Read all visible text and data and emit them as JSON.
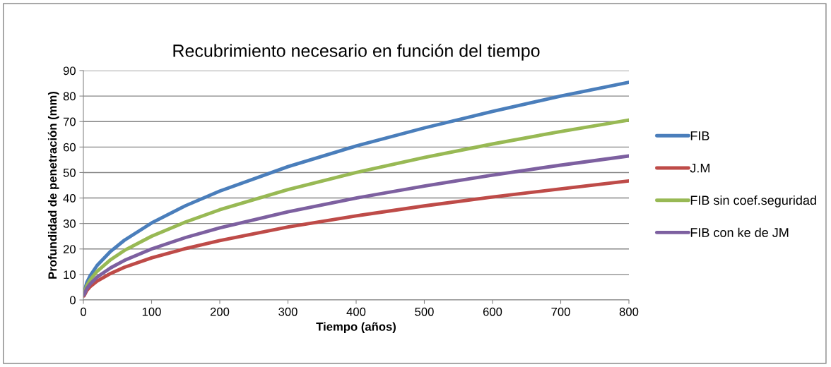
{
  "chart_data": {
    "type": "line",
    "title": "Recubrimiento necesario en función del tiempo",
    "xlabel": "Tiempo (años)",
    "ylabel": "Profundidad de penetración (mm)",
    "x": [
      1,
      5,
      10,
      20,
      40,
      60,
      100,
      150,
      200,
      300,
      400,
      500,
      600,
      700,
      800
    ],
    "series": [
      {
        "name": "FIB",
        "color": "#4a7ebb",
        "values": [
          3.0,
          6.8,
          9.5,
          13.5,
          19.1,
          23.4,
          30.2,
          37,
          42.7,
          52.3,
          60.4,
          67.5,
          74,
          80,
          85.4
        ]
      },
      {
        "name": "J.M",
        "color": "#be4b48",
        "values": [
          1.6,
          3.7,
          5.2,
          7.4,
          10.4,
          12.8,
          16.5,
          20.2,
          23.3,
          28.6,
          33,
          36.9,
          40.4,
          43.6,
          46.7
        ]
      },
      {
        "name": "FIB sin coef.seguridad",
        "color": "#98b954",
        "values": [
          2.5,
          5.6,
          7.9,
          11.2,
          15.8,
          19.4,
          25,
          30.6,
          35.4,
          43.3,
          50,
          55.9,
          61.2,
          66.1,
          70.6
        ]
      },
      {
        "name": "FIB con ke de JM",
        "color": "#7d60a0",
        "values": [
          2,
          4.5,
          6.3,
          8.9,
          12.6,
          15.5,
          20,
          24.5,
          28.3,
          34.6,
          40,
          44.7,
          49,
          52.9,
          56.5
        ]
      }
    ],
    "xlim": [
      0,
      800
    ],
    "xticks": [
      0,
      100,
      200,
      300,
      400,
      500,
      600,
      700,
      800
    ],
    "ylim": [
      0,
      90
    ],
    "yticks": [
      0,
      10,
      20,
      30,
      40,
      50,
      60,
      70,
      80,
      90
    ],
    "grid": "y",
    "legend": "right",
    "marker": "none",
    "line_style": "solid"
  }
}
